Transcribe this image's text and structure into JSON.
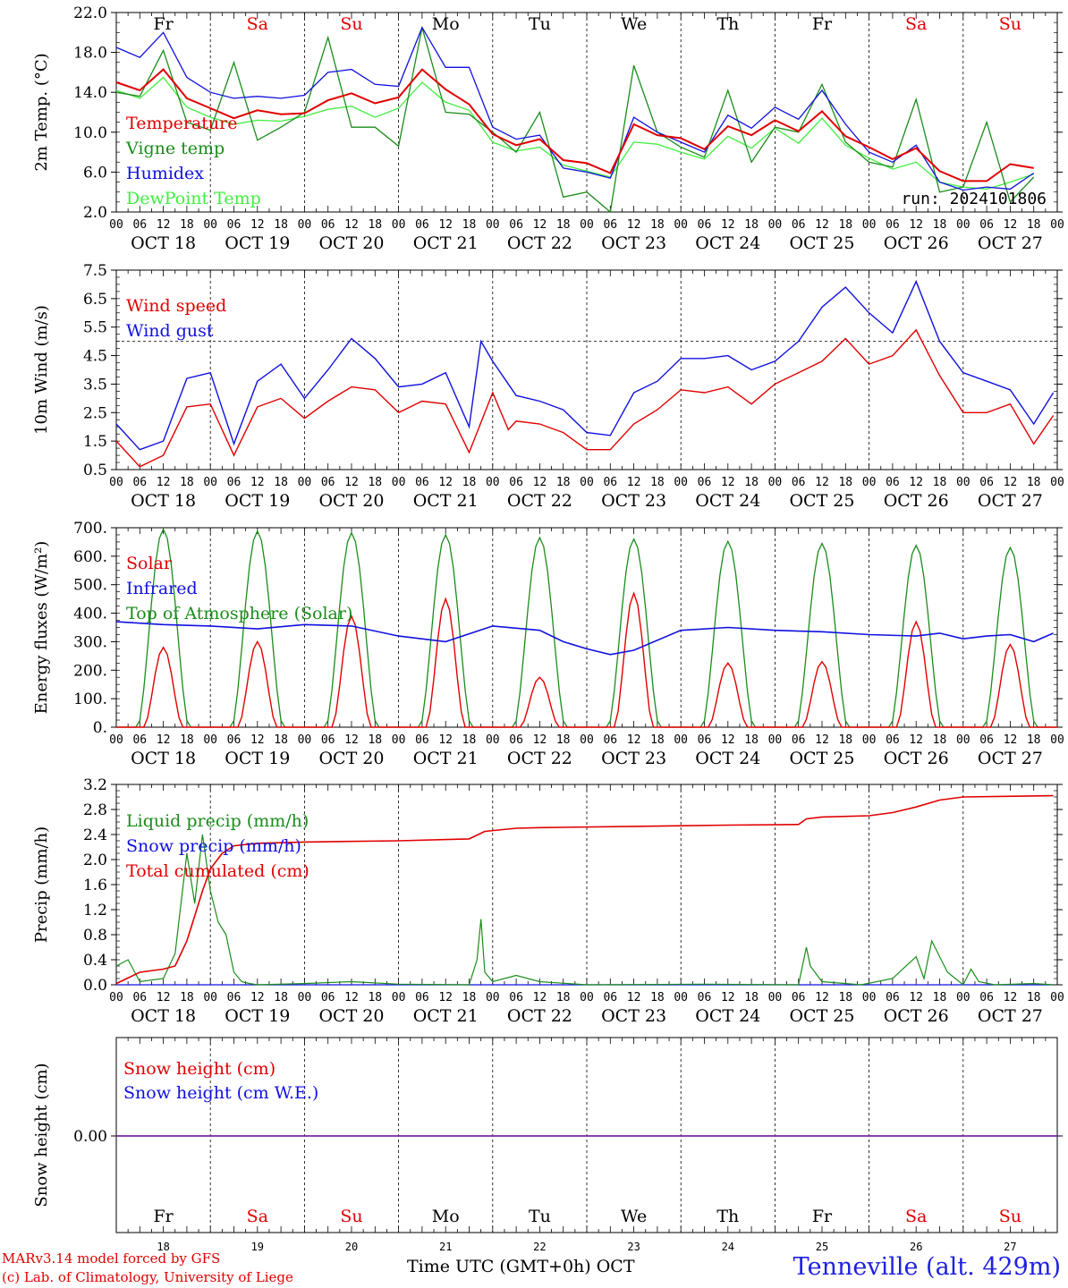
{
  "day_names": [
    "Fr",
    "Sa",
    "Su",
    "Mo",
    "Tu",
    "We",
    "Th",
    "Fr",
    "Sa",
    "Su"
  ],
  "weekend_flags": [
    false,
    true,
    true,
    false,
    false,
    false,
    false,
    false,
    true,
    true
  ],
  "date_labels": [
    "OCT 18",
    "OCT 19",
    "OCT 20",
    "OCT 21",
    "OCT 22",
    "OCT 23",
    "OCT 24",
    "OCT 25",
    "OCT 26",
    "OCT 27"
  ],
  "hour_ticks": [
    "00",
    "06",
    "12",
    "18"
  ],
  "hour_tick_end": "00",
  "bottom_day_numbers": [
    "18",
    "19",
    "20",
    "21",
    "22",
    "23",
    "24",
    "25",
    "26",
    "27"
  ],
  "colors": {
    "red": "#e00000",
    "green": "#1a8c1a",
    "blue": "#1010e0",
    "light_green": "#40ee40",
    "purple": "#7a2a9a",
    "weekend_text": "#e00000"
  },
  "footer": {
    "credit_line1": "MARv3.14 model forced by GFS",
    "credit_line2": "(c) Lab. of Climatology, University of Liege",
    "x_axis_label": "Time UTC (GMT+0h) OCT",
    "station": "Tenneville (alt. 429m)"
  },
  "chart_data": [
    {
      "type": "line",
      "ylabel": "2m Temp. (°C)",
      "ylim": [
        2.0,
        22.0
      ],
      "yticks": [
        "2.0",
        "6.0",
        "10.0",
        "14.0",
        "18.0",
        "22.0"
      ],
      "annotation": "run: 2024101806",
      "x_unit": "hours from OCT 18 00 UTC",
      "series": [
        {
          "name": "Temperature",
          "color": "red",
          "x": [
            0,
            6,
            12,
            18,
            24,
            30,
            36,
            42,
            48,
            54,
            60,
            66,
            72,
            78,
            84,
            90,
            96,
            102,
            108,
            114,
            120,
            126,
            132,
            138,
            144,
            150,
            156,
            162,
            168,
            174,
            180,
            186,
            192,
            198,
            204,
            210,
            216,
            222,
            228,
            234
          ],
          "y": [
            15.0,
            14.2,
            16.3,
            13.4,
            12.4,
            11.4,
            12.2,
            11.8,
            11.9,
            13.2,
            13.9,
            12.9,
            13.5,
            16.3,
            14.3,
            12.8,
            9.8,
            8.7,
            9.3,
            7.2,
            6.9,
            5.9,
            10.8,
            9.7,
            9.4,
            8.3,
            10.6,
            9.7,
            11.2,
            10.1,
            12.1,
            9.6,
            8.5,
            7.3,
            8.4,
            6.1,
            5.1,
            5.1,
            6.8,
            6.4
          ]
        },
        {
          "name": "Vigne temp",
          "color": "green",
          "x": [
            0,
            6,
            12,
            18,
            24,
            30,
            36,
            42,
            48,
            54,
            60,
            66,
            72,
            78,
            84,
            90,
            96,
            102,
            108,
            114,
            120,
            126,
            132,
            138,
            144,
            150,
            156,
            162,
            168,
            174,
            180,
            186,
            192,
            198,
            204,
            210,
            216,
            222,
            228,
            234
          ],
          "y": [
            14.0,
            13.6,
            18.2,
            11.0,
            10.2,
            17.0,
            9.2,
            10.5,
            12.0,
            19.5,
            10.5,
            10.5,
            8.6,
            20.5,
            12.0,
            11.8,
            10.0,
            8.0,
            12.0,
            3.5,
            4.0,
            2.0,
            16.7,
            10.0,
            8.5,
            7.5,
            14.2,
            7.0,
            10.5,
            10.0,
            14.8,
            9.0,
            7.0,
            6.5,
            13.3,
            4.0,
            4.5,
            11.0,
            3.0,
            5.5
          ]
        },
        {
          "name": "Humidex",
          "color": "blue",
          "x": [
            0,
            6,
            12,
            18,
            24,
            30,
            36,
            42,
            48,
            54,
            60,
            66,
            72,
            78,
            84,
            90,
            96,
            102,
            108,
            114,
            120,
            126,
            132,
            138,
            144,
            150,
            156,
            162,
            168,
            174,
            180,
            186,
            192,
            198,
            204,
            210,
            216,
            222,
            228,
            234
          ],
          "y": [
            18.5,
            17.5,
            20.0,
            15.5,
            14.0,
            13.4,
            13.6,
            13.4,
            13.7,
            16.0,
            16.3,
            14.8,
            14.6,
            20.5,
            16.5,
            16.5,
            10.5,
            9.3,
            9.7,
            6.4,
            6.0,
            5.4,
            11.5,
            10.0,
            9.0,
            8.0,
            11.7,
            10.4,
            12.5,
            11.3,
            14.2,
            10.8,
            8.0,
            7.0,
            8.7,
            5.0,
            4.2,
            4.5,
            4.3,
            5.9
          ]
        },
        {
          "name": "DewPoint Temp",
          "color": "light_green",
          "x": [
            0,
            6,
            12,
            18,
            24,
            30,
            36,
            42,
            48,
            54,
            60,
            66,
            72,
            78,
            84,
            90,
            96,
            102,
            108,
            114,
            120,
            126,
            132,
            138,
            144,
            150,
            156,
            162,
            168,
            174,
            180,
            186,
            192,
            198,
            204,
            210,
            216,
            222,
            228,
            234
          ],
          "y": [
            14.2,
            13.4,
            15.5,
            12.5,
            11.5,
            10.8,
            11.2,
            11.1,
            11.6,
            12.3,
            12.6,
            11.5,
            12.4,
            15.0,
            13.0,
            12.2,
            9.0,
            8.1,
            8.5,
            6.7,
            6.1,
            5.5,
            9.0,
            8.8,
            8.0,
            7.3,
            9.6,
            8.4,
            10.4,
            8.9,
            11.4,
            8.7,
            7.4,
            6.3,
            7.0,
            5.0,
            4.5,
            4.3,
            5.0,
            5.8
          ]
        }
      ]
    },
    {
      "type": "line",
      "ylabel": "10m Wind (m/s)",
      "ylim": [
        0.5,
        7.5
      ],
      "yticks": [
        "0.5",
        "1.5",
        "2.5",
        "3.5",
        "4.5",
        "5.5",
        "6.5",
        "7.5"
      ],
      "reference_line": 5.0,
      "x_unit": "hours from OCT 18 00 UTC",
      "series": [
        {
          "name": "Wind speed",
          "color": "red",
          "x": [
            0,
            6,
            12,
            18,
            24,
            30,
            36,
            42,
            48,
            54,
            60,
            66,
            72,
            78,
            84,
            90,
            96,
            100,
            102,
            108,
            114,
            120,
            126,
            132,
            138,
            144,
            150,
            156,
            162,
            168,
            174,
            180,
            186,
            192,
            198,
            204,
            210,
            216,
            222,
            228,
            234,
            239
          ],
          "y": [
            1.5,
            0.6,
            1.0,
            2.7,
            2.8,
            1.0,
            2.7,
            3.0,
            2.3,
            2.9,
            3.4,
            3.3,
            2.5,
            2.9,
            2.8,
            1.1,
            3.2,
            1.9,
            2.2,
            2.1,
            1.8,
            1.2,
            1.2,
            2.1,
            2.6,
            3.3,
            3.2,
            3.4,
            2.8,
            3.5,
            3.9,
            4.3,
            5.1,
            4.2,
            4.5,
            5.4,
            3.8,
            2.5,
            2.5,
            2.8,
            1.4,
            2.4
          ]
        },
        {
          "name": "Wind gust",
          "color": "blue",
          "x": [
            0,
            6,
            12,
            18,
            24,
            30,
            36,
            42,
            48,
            54,
            60,
            66,
            72,
            78,
            84,
            90,
            93,
            96,
            102,
            108,
            114,
            120,
            126,
            132,
            138,
            144,
            150,
            156,
            162,
            168,
            174,
            180,
            186,
            192,
            198,
            204,
            210,
            216,
            222,
            228,
            234,
            239
          ],
          "y": [
            2.1,
            1.2,
            1.5,
            3.7,
            3.9,
            1.4,
            3.6,
            4.2,
            3.0,
            4.0,
            5.1,
            4.4,
            3.4,
            3.5,
            3.9,
            2.0,
            5.0,
            4.3,
            3.1,
            2.9,
            2.6,
            1.8,
            1.7,
            3.2,
            3.6,
            4.4,
            4.4,
            4.5,
            4.0,
            4.3,
            5.0,
            6.2,
            6.9,
            6.0,
            5.3,
            7.1,
            5.0,
            3.9,
            3.6,
            3.3,
            2.1,
            3.2
          ]
        }
      ]
    },
    {
      "type": "line",
      "ylabel": "Energy fluxes (W/m²)",
      "ylim": [
        0,
        700
      ],
      "yticks": [
        "0.",
        "100.",
        "200.",
        "300.",
        "400.",
        "500.",
        "600.",
        "700."
      ],
      "x_unit": "hours from OCT 18 00 UTC",
      "series": [
        {
          "name": "Solar",
          "color": "red",
          "peak_hours": [
            12,
            36,
            60,
            84,
            108,
            132,
            156,
            180,
            204,
            228
          ],
          "peaks": [
            280,
            300,
            390,
            450,
            175,
            470,
            225,
            230,
            370,
            290
          ]
        },
        {
          "name": "Infrared",
          "color": "blue",
          "x": [
            0,
            12,
            24,
            36,
            48,
            60,
            72,
            84,
            96,
            108,
            114,
            120,
            126,
            132,
            144,
            156,
            168,
            180,
            192,
            204,
            210,
            216,
            222,
            228,
            234,
            239
          ],
          "y": [
            370,
            360,
            355,
            345,
            360,
            355,
            320,
            300,
            355,
            340,
            300,
            275,
            255,
            270,
            340,
            350,
            340,
            335,
            325,
            320,
            330,
            310,
            320,
            325,
            300,
            330
          ]
        },
        {
          "name": "Top of Atmosphere (Solar)",
          "color": "green",
          "peak_hours": [
            12,
            36,
            60,
            84,
            108,
            132,
            156,
            180,
            204,
            228
          ],
          "peaks": [
            695,
            688,
            682,
            675,
            665,
            660,
            652,
            645,
            638,
            630
          ]
        }
      ]
    },
    {
      "type": "line",
      "ylabel": "Precip (mm/h)",
      "ylim": [
        0.0,
        3.2
      ],
      "yticks": [
        "0.0",
        "0.4",
        "0.8",
        "1.2",
        "1.6",
        "2.0",
        "2.4",
        "2.8",
        "3.2"
      ],
      "x_unit": "hours from OCT 18 00 UTC",
      "series": [
        {
          "name": "Liquid precip (mm/h)",
          "color": "green",
          "x": [
            0,
            3,
            6,
            12,
            15,
            18,
            20,
            22,
            24,
            26,
            28,
            30,
            32,
            34,
            36,
            48,
            60,
            72,
            90,
            92,
            93,
            94,
            96,
            102,
            108,
            120,
            150,
            174,
            176,
            177,
            180,
            190,
            198,
            204,
            206,
            208,
            212,
            216,
            218,
            220,
            224,
            234,
            239
          ],
          "y": [
            0.3,
            0.4,
            0.05,
            0.1,
            0.5,
            2.1,
            1.3,
            2.4,
            1.5,
            1.0,
            0.8,
            0.2,
            0.05,
            0.02,
            0.0,
            0.02,
            0.05,
            0.01,
            0.0,
            0.4,
            1.05,
            0.2,
            0.05,
            0.15,
            0.05,
            0.0,
            0.01,
            0.0,
            0.6,
            0.3,
            0.05,
            0.0,
            0.1,
            0.45,
            0.1,
            0.7,
            0.2,
            0.0,
            0.25,
            0.05,
            0.0,
            0.02,
            0.0
          ]
        },
        {
          "name": "Snow precip (mm/h)",
          "color": "blue",
          "x": [
            0,
            239
          ],
          "y": [
            0.0,
            0.0
          ]
        },
        {
          "name": "Total cumulated (cm)",
          "color": "red",
          "x": [
            0,
            6,
            12,
            15,
            18,
            20,
            22,
            24,
            27,
            30,
            36,
            48,
            72,
            90,
            94,
            102,
            108,
            132,
            156,
            174,
            176,
            180,
            192,
            198,
            204,
            210,
            216,
            239
          ],
          "y": [
            0.02,
            0.2,
            0.25,
            0.3,
            0.7,
            1.1,
            1.5,
            1.85,
            2.1,
            2.22,
            2.26,
            2.28,
            2.3,
            2.33,
            2.45,
            2.5,
            2.51,
            2.53,
            2.55,
            2.56,
            2.65,
            2.68,
            2.7,
            2.75,
            2.84,
            2.95,
            3.0,
            3.02
          ]
        }
      ]
    },
    {
      "type": "line",
      "ylabel": "Snow height (cm)",
      "yticks": [
        "0.00"
      ],
      "x_unit": "hours from OCT 18 00 UTC",
      "series": [
        {
          "name": "Snow height (cm)",
          "color": "red",
          "x": [
            0,
            239
          ],
          "y": [
            0.0,
            0.0
          ]
        },
        {
          "name": "Snow height (cm W.E.)",
          "color": "blue",
          "x": [
            0,
            239
          ],
          "y": [
            0.0,
            0.0
          ]
        }
      ]
    }
  ]
}
